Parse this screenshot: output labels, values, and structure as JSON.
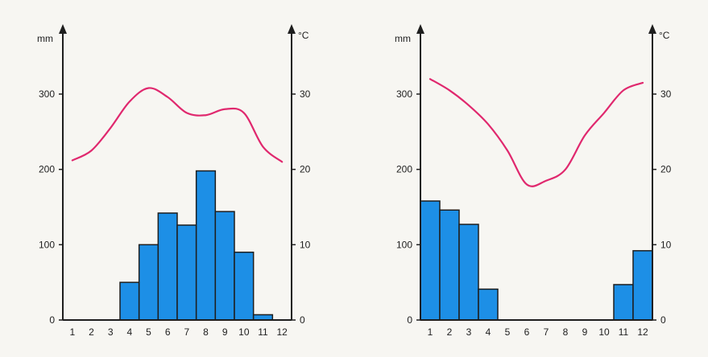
{
  "chart_data": [
    {
      "type": "bar",
      "ylabel_left": "mm",
      "ylabel_right": "°C",
      "categories": [
        "1",
        "2",
        "3",
        "4",
        "5",
        "6",
        "7",
        "8",
        "9",
        "10",
        "11",
        "12"
      ],
      "precipitation_mm": [
        0,
        0,
        0,
        50,
        100,
        142,
        126,
        198,
        144,
        90,
        7,
        0
      ],
      "temperature_c": [
        21.2,
        22.5,
        25.5,
        29.0,
        30.8,
        29.6,
        27.5,
        27.2,
        28.0,
        27.5,
        23.0,
        21.0
      ],
      "ylim_left": [
        0,
        300
      ],
      "ylim_right": [
        0,
        30
      ],
      "yticks_left": [
        "0",
        "100",
        "200",
        "300"
      ],
      "yticks_right": [
        "0",
        "10",
        "20",
        "30"
      ],
      "bar_color": "#1d8fe6",
      "line_color": "#e0286e"
    },
    {
      "type": "bar",
      "ylabel_left": "mm",
      "ylabel_right": "°C",
      "categories": [
        "1",
        "2",
        "3",
        "4",
        "5",
        "6",
        "7",
        "8",
        "9",
        "10",
        "11",
        "12"
      ],
      "precipitation_mm": [
        158,
        146,
        127,
        41,
        0,
        0,
        0,
        0,
        0,
        0,
        47,
        92
      ],
      "temperature_c": [
        32.0,
        30.5,
        28.5,
        26.0,
        22.5,
        18.0,
        18.5,
        20.0,
        24.5,
        27.5,
        30.5,
        31.5
      ],
      "ylim_left": [
        0,
        300
      ],
      "ylim_right": [
        0,
        30
      ],
      "yticks_left": [
        "0",
        "100",
        "200",
        "300"
      ],
      "yticks_right": [
        "0",
        "10",
        "20",
        "30"
      ],
      "bar_color": "#1d8fe6",
      "line_color": "#e0286e"
    }
  ]
}
